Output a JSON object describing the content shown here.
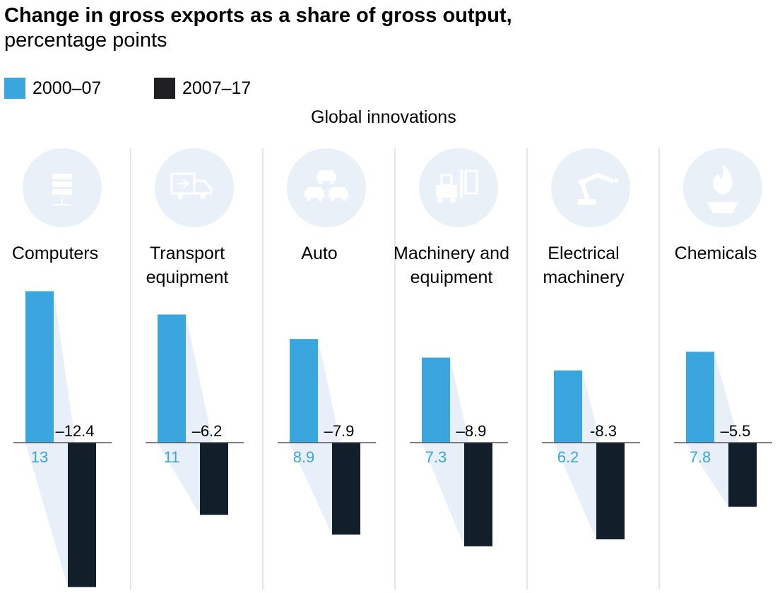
{
  "title_line1": "Change in gross exports as a share of gross output,",
  "title_line2": "percentage points",
  "legend": [
    {
      "label": "2000–07",
      "color": "#3aa6dd"
    },
    {
      "label": "2007–17",
      "color": "#1f1f24"
    }
  ],
  "group_label": "Global innovations",
  "colors": {
    "bar_a": "#3aa6dd",
    "bar_b": "#121f2b",
    "band": "#e8eff8",
    "icon_circle": "#e9f0f8",
    "icon_glyph": "#ffffff",
    "divider": "#cccccc",
    "axis": "#555555",
    "value_a": "#3aa6dd",
    "value_b": "#000000"
  },
  "chart_data": {
    "type": "bar",
    "title": "Change in gross exports as a share of gross output, percentage points",
    "group": "Global innovations",
    "categories": [
      {
        "name": "Computers",
        "label_lines": [
          "Computers"
        ],
        "icon": "server-rack-icon"
      },
      {
        "name": "Transport equipment",
        "label_lines": [
          "Transport",
          "equipment"
        ],
        "icon": "truck-icon"
      },
      {
        "name": "Auto",
        "label_lines": [
          "Auto"
        ],
        "icon": "cars-icon"
      },
      {
        "name": "Machinery and equipment",
        "label_lines": [
          "Machinery and",
          "equipment"
        ],
        "icon": "forklift-icon"
      },
      {
        "name": "Electrical machinery",
        "label_lines": [
          "Electrical",
          "machinery"
        ],
        "icon": "robot-arm-icon"
      },
      {
        "name": "Chemicals",
        "label_lines": [
          "Chemicals"
        ],
        "icon": "flame-burner-icon"
      }
    ],
    "series": [
      {
        "name": "2000–07",
        "values": [
          13,
          11,
          8.9,
          7.3,
          6.2,
          7.8
        ],
        "labels": [
          "13",
          "11",
          "8.9",
          "7.3",
          "6.2",
          "7.8"
        ]
      },
      {
        "name": "2007–17",
        "values": [
          -12.4,
          -6.2,
          -7.9,
          -8.9,
          -8.3,
          -5.5
        ],
        "labels": [
          "–12.4",
          "–6.2",
          "–7.9",
          "–8.9",
          "-8.3",
          "–5.5"
        ]
      }
    ],
    "ylim": [
      -12.4,
      13
    ],
    "xlabel": "",
    "ylabel": ""
  }
}
